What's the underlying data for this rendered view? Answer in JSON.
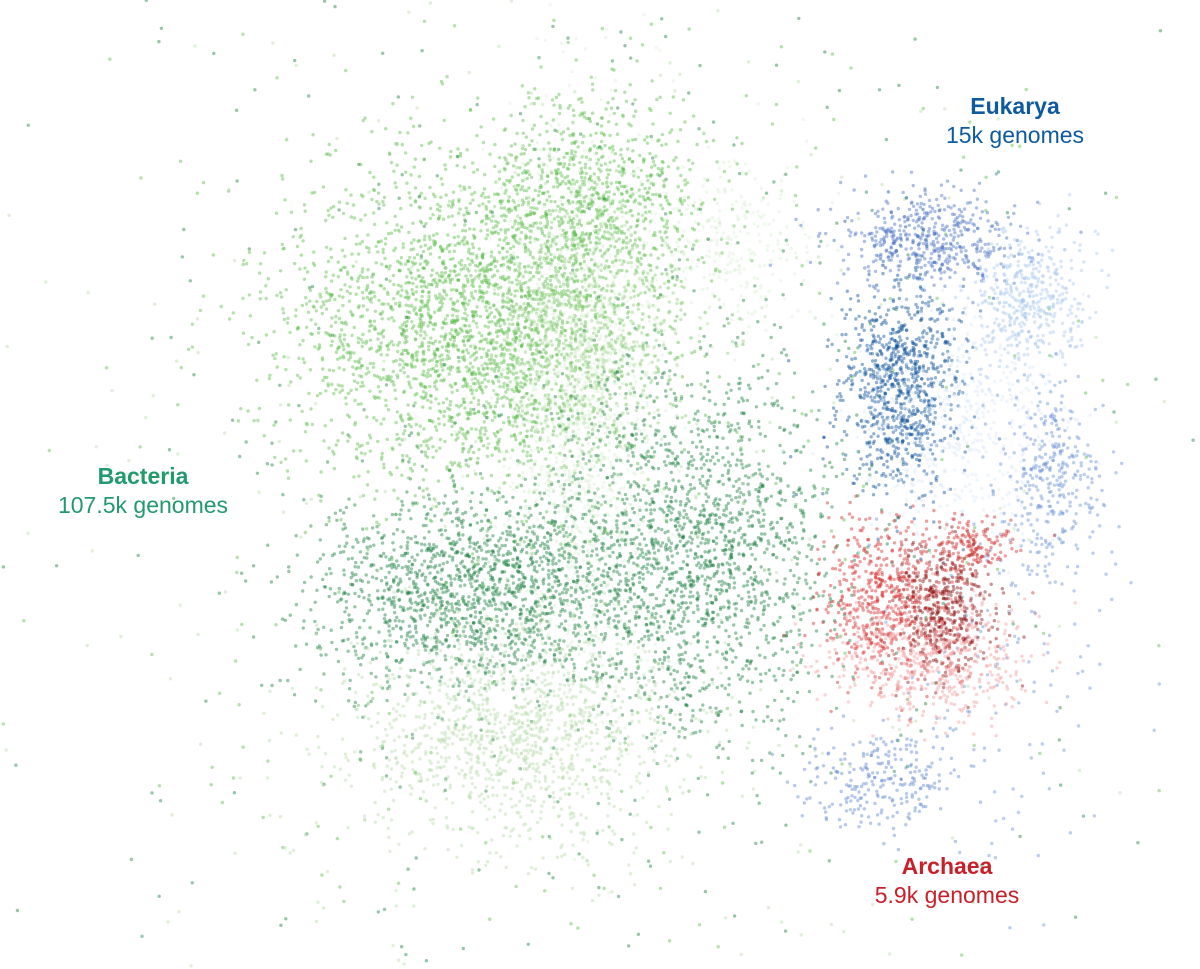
{
  "chart_data": {
    "type": "scatter",
    "title": "",
    "xlabel": "",
    "ylabel": "",
    "axes_visible": false,
    "grid": false,
    "annotations": [
      {
        "id": "bacteria",
        "title": "Bacteria",
        "subtitle": "107.5k genomes",
        "color": "#22996e"
      },
      {
        "id": "eukarya",
        "title": "Eukarya",
        "subtitle": "15k genomes",
        "color": "#0d5a9e"
      },
      {
        "id": "archaea",
        "title": "Archaea",
        "subtitle": "5.9k genomes",
        "color": "#c8202a"
      }
    ],
    "series": [
      {
        "name": "Bacteria",
        "clusters": [
          {
            "color": "#5cbd4a",
            "center": [
              47,
              33
            ],
            "spread": [
              9,
              8
            ],
            "n": 2600
          },
          {
            "color": "#5cbd4a",
            "center": [
              59,
              20
            ],
            "spread": [
              6,
              5
            ],
            "n": 900
          },
          {
            "color": "#8fcf7a",
            "center": [
              58,
              32
            ],
            "spread": [
              5,
              6
            ],
            "n": 700
          },
          {
            "color": "#dcefd5",
            "center": [
              58,
              43
            ],
            "spread": [
              4,
              14
            ],
            "n": 1400
          },
          {
            "color": "#1b8040",
            "center": [
              48,
              59
            ],
            "spread": [
              8,
              5
            ],
            "n": 1600
          },
          {
            "color": "#1b8040",
            "center": [
              70,
              55
            ],
            "spread": [
              7,
              9
            ],
            "n": 1700
          },
          {
            "color": "#b8dcae",
            "center": [
              52,
              73
            ],
            "spread": [
              8,
              6
            ],
            "n": 1300
          },
          {
            "color": "#dcefd5",
            "center": [
              74,
              24
            ],
            "spread": [
              4,
              4
            ],
            "n": 250
          },
          {
            "color": "#1b8040",
            "center": [
              58,
              47
            ],
            "spread": [
              28,
              38
            ],
            "n": 500
          },
          {
            "color": "#5cbd4a",
            "center": [
              58,
              47
            ],
            "spread": [
              28,
              38
            ],
            "n": 400
          },
          {
            "color": "#b8dcae",
            "center": [
              58,
              47
            ],
            "spread": [
              30,
              40
            ],
            "n": 400
          }
        ]
      },
      {
        "name": "Eukarya",
        "clusters": [
          {
            "color": "#0b4f9c",
            "center": [
              90,
              38
            ],
            "spread": [
              3,
              5.5
            ],
            "n": 900
          },
          {
            "color": "#4a72c4",
            "center": [
              93,
              24
            ],
            "spread": [
              4.5,
              2.5
            ],
            "n": 500
          },
          {
            "color": "#a9c8ee",
            "center": [
              103,
              30
            ],
            "spread": [
              3,
              3.5
            ],
            "n": 450
          },
          {
            "color": "#dce9f8",
            "center": [
              96,
              43
            ],
            "spread": [
              5,
              5
            ],
            "n": 500
          },
          {
            "color": "#6b93d6",
            "center": [
              105,
              48
            ],
            "spread": [
              2.5,
              5
            ],
            "n": 350
          },
          {
            "color": "#5f88d0",
            "center": [
              88,
              78
            ],
            "spread": [
              4,
              2.5
            ],
            "n": 250
          },
          {
            "color": "#6b93d6",
            "center": [
              100,
              70
            ],
            "spread": [
              6,
              10
            ],
            "n": 120
          }
        ]
      },
      {
        "name": "Archaea",
        "clusters": [
          {
            "color": "#d42a2a",
            "center": [
              89,
              60
            ],
            "spread": [
              3.5,
              4
            ],
            "n": 600
          },
          {
            "color": "#8b1010",
            "center": [
              94.5,
              61
            ],
            "spread": [
              2.3,
              3.2
            ],
            "n": 450
          },
          {
            "color": "#f4a0a0",
            "center": [
              93,
              66
            ],
            "spread": [
              5,
              3
            ],
            "n": 550
          },
          {
            "color": "#d42a2a",
            "center": [
              97,
              54.5
            ],
            "spread": [
              2,
              1.5
            ],
            "n": 150
          }
        ]
      }
    ]
  }
}
